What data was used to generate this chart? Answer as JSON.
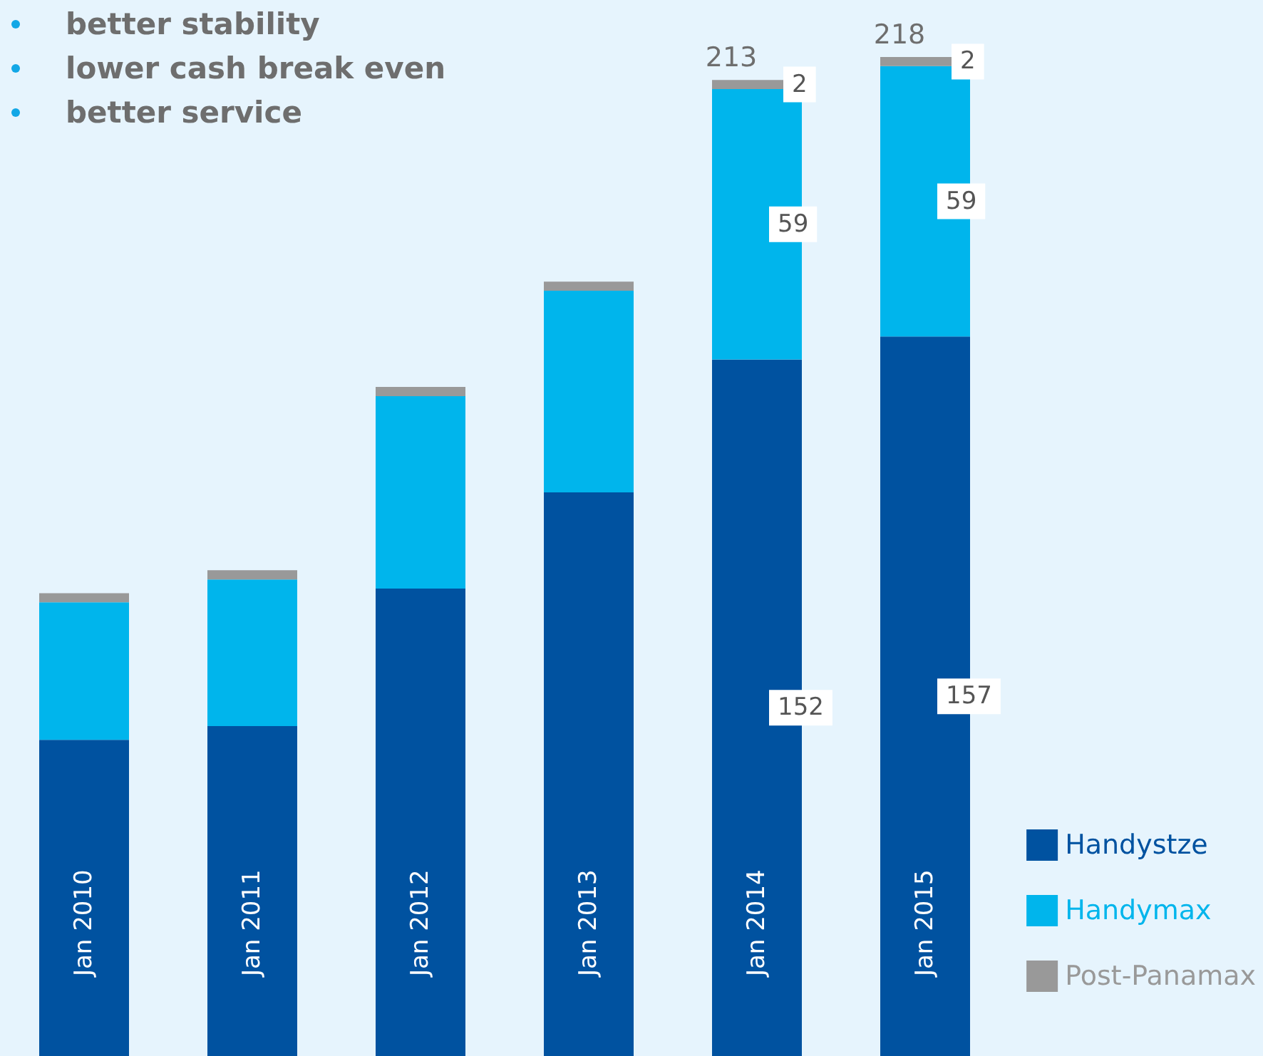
{
  "chart_data": {
    "type": "bar",
    "stacked": true,
    "categories": [
      "Jan 2010",
      "Jan 2011",
      "Jan 2012",
      "Jan 2013",
      "Jan 2014",
      "Jan 2015"
    ],
    "series": [
      {
        "name": "Handystze",
        "color": "#0052a0",
        "values": [
          69,
          72,
          102,
          123,
          152,
          157
        ],
        "value_labels": [
          null,
          null,
          null,
          null,
          "152",
          "157"
        ]
      },
      {
        "name": "Handymax",
        "color": "#00b5ec",
        "values": [
          30,
          32,
          42,
          44,
          59,
          59
        ],
        "value_labels": [
          null,
          null,
          null,
          null,
          "59",
          "59"
        ]
      },
      {
        "name": "Post-Panamax",
        "color": "#999999",
        "values": [
          2,
          2,
          2,
          2,
          2,
          2
        ],
        "value_labels": [
          null,
          null,
          null,
          null,
          "2",
          "2"
        ]
      }
    ],
    "totals": [
      null,
      null,
      null,
      null,
      "213",
      "218"
    ],
    "annotations": [
      "better stability",
      "lower cash break even",
      "better service"
    ],
    "legend": "bottom right",
    "grid": false
  }
}
